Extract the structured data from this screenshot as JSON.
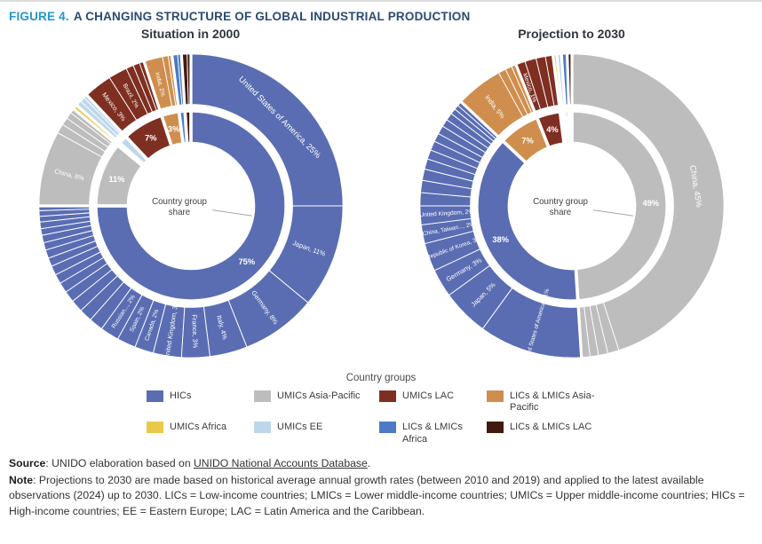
{
  "figure": {
    "label": "FIGURE 4.",
    "title": "A CHANGING STRUCTURE OF GLOBAL INDUSTRIAL PRODUCTION"
  },
  "colors": {
    "hics": "#5a6db3",
    "umics_ap": "#bdbdbd",
    "umics_lac": "#7e2f21",
    "lmics_ap": "#cf8e4e",
    "umics_africa": "#e9c949",
    "umics_ee": "#bdd7ea",
    "lmics_africa": "#4a7bc4",
    "lmics_lac": "#42190e"
  },
  "chart_data": [
    {
      "type": "donut",
      "title": "Situation in 2000",
      "center_label": "Country group share",
      "inner_ring": [
        {
          "group": "HICs",
          "color": "hics",
          "value": 75,
          "label": "75%"
        },
        {
          "group": "UMICs Asia-Pacific",
          "color": "umics_ap",
          "value": 11,
          "label": "11%"
        },
        {
          "group": "UMICs Africa",
          "color": "umics_africa",
          "value": 0.5
        },
        {
          "group": "UMICs EE",
          "color": "umics_ee",
          "value": 1.5
        },
        {
          "group": "UMICs LAC",
          "color": "umics_lac",
          "value": 7,
          "label": "7%"
        },
        {
          "group": "LICs & LMICs Asia-Pacific",
          "color": "lmics_ap",
          "value": 3,
          "label": "3%"
        },
        {
          "group": "LICs & LMICs Africa",
          "color": "lmics_africa",
          "value": 1
        },
        {
          "group": "LICs & LMICs LAC",
          "color": "lmics_lac",
          "value": 1
        }
      ],
      "outer_ring": [
        {
          "name": "United States of America",
          "label": "United States of America, 25%",
          "color": "hics",
          "value": 25
        },
        {
          "name": "Japan",
          "label": "Japan, 11%",
          "color": "hics",
          "value": 11
        },
        {
          "name": "Germany",
          "label": "Germany, 8%",
          "color": "hics",
          "value": 8
        },
        {
          "name": "Italy",
          "label": "Italy, 4%",
          "color": "hics",
          "value": 4
        },
        {
          "name": "France",
          "label": "France, 3%",
          "color": "hics",
          "value": 3
        },
        {
          "name": "United Kingdom",
          "label": "United Kingdom, 3%",
          "color": "hics",
          "value": 3
        },
        {
          "name": "Canada",
          "label": "Canada, 2%",
          "color": "hics",
          "value": 2
        },
        {
          "name": "Spain",
          "label": "Spain, 2%",
          "color": "hics",
          "value": 2
        },
        {
          "name": "Russian Federation",
          "label": "Russian..., 2%",
          "color": "hics",
          "value": 2
        },
        {
          "color": "hics",
          "value": 1.5
        },
        {
          "color": "hics",
          "value": 1.4
        },
        {
          "color": "hics",
          "value": 1.3
        },
        {
          "color": "hics",
          "value": 1.2
        },
        {
          "color": "hics",
          "value": 1.1
        },
        {
          "color": "hics",
          "value": 1
        },
        {
          "color": "hics",
          "value": 1
        },
        {
          "color": "hics",
          "value": 0.9
        },
        {
          "color": "hics",
          "value": 0.9
        },
        {
          "color": "hics",
          "value": 0.8
        },
        {
          "color": "hics",
          "value": 0.8
        },
        {
          "color": "hics",
          "value": 0.7
        },
        {
          "color": "hics",
          "value": 0.7
        },
        {
          "color": "hics",
          "value": 0.6
        },
        {
          "color": "hics",
          "value": 0.6
        },
        {
          "color": "hics",
          "value": 0.5
        },
        {
          "name": "China",
          "label": "China, 8%",
          "color": "umics_ap",
          "value": 8
        },
        {
          "color": "umics_ap",
          "value": 1
        },
        {
          "color": "umics_ap",
          "value": 0.8
        },
        {
          "color": "umics_ap",
          "value": 0.7
        },
        {
          "color": "umics_ap",
          "value": 0.5
        },
        {
          "color": "umics_africa",
          "value": 0.5
        },
        {
          "color": "umics_ee",
          "value": 0.6
        },
        {
          "color": "umics_ee",
          "value": 0.5
        },
        {
          "color": "umics_ee",
          "value": 0.4
        },
        {
          "name": "Mexico",
          "label": "Mexico, 3%",
          "color": "umics_lac",
          "value": 3
        },
        {
          "name": "Brazil",
          "label": "Brazil, 2%",
          "color": "umics_lac",
          "value": 2
        },
        {
          "color": "umics_lac",
          "value": 0.8
        },
        {
          "color": "umics_lac",
          "value": 0.7
        },
        {
          "color": "umics_lac",
          "value": 0.5
        },
        {
          "name": "India",
          "label": "India, 2%",
          "color": "lmics_ap",
          "value": 2
        },
        {
          "color": "lmics_ap",
          "value": 0.6
        },
        {
          "color": "lmics_ap",
          "value": 0.4
        },
        {
          "color": "lmics_africa",
          "value": 0.6
        },
        {
          "color": "lmics_africa",
          "value": 0.4
        },
        {
          "color": "lmics_lac",
          "value": 0.6
        },
        {
          "color": "lmics_lac",
          "value": 0.4
        }
      ]
    },
    {
      "type": "donut",
      "title": "Projection to 2030",
      "center_label": "Country group share",
      "inner_ring": [
        {
          "group": "UMICs Asia-Pacific",
          "color": "umics_ap",
          "value": 49,
          "label": "49%"
        },
        {
          "group": "HICs",
          "color": "hics",
          "value": 38,
          "label": "38%"
        },
        {
          "group": "LICs & LMICs Asia-Pacific",
          "color": "lmics_ap",
          "value": 7,
          "label": "7%"
        },
        {
          "group": "UMICs LAC",
          "color": "umics_lac",
          "value": 4,
          "label": "4%"
        },
        {
          "group": "UMICs Africa",
          "color": "umics_africa",
          "value": 0.4
        },
        {
          "group": "UMICs EE",
          "color": "umics_ee",
          "value": 0.5
        },
        {
          "group": "LICs & LMICs Africa",
          "color": "lmics_africa",
          "value": 0.6
        },
        {
          "group": "LICs & LMICs LAC",
          "color": "lmics_lac",
          "value": 0.5
        }
      ],
      "outer_ring": [
        {
          "name": "China",
          "label": "China, 45%",
          "color": "umics_ap",
          "value": 45
        },
        {
          "color": "umics_ap",
          "value": 1.2
        },
        {
          "color": "umics_ap",
          "value": 1
        },
        {
          "color": "umics_ap",
          "value": 0.9
        },
        {
          "color": "umics_ap",
          "value": 0.9
        },
        {
          "name": "United States of America",
          "label": "United States of America, 11%",
          "color": "hics",
          "value": 11
        },
        {
          "name": "Japan",
          "label": "Japan, 5%",
          "color": "hics",
          "value": 5
        },
        {
          "name": "Germany",
          "label": "Germany, 3%",
          "color": "hics",
          "value": 3
        },
        {
          "name": "Republic of Korea",
          "label": "Republic of Korea, 3%",
          "color": "hics",
          "value": 3
        },
        {
          "name": "China, Taiwan Province",
          "label": "China, Taiwan..., 2%",
          "color": "hics",
          "value": 2
        },
        {
          "name": "United Kingdom",
          "label": "United Kingdom, 2%",
          "color": "hics",
          "value": 2
        },
        {
          "color": "hics",
          "value": 1.4
        },
        {
          "color": "hics",
          "value": 1.3
        },
        {
          "color": "hics",
          "value": 1.2
        },
        {
          "color": "hics",
          "value": 1.1
        },
        {
          "color": "hics",
          "value": 1
        },
        {
          "color": "hics",
          "value": 1
        },
        {
          "color": "hics",
          "value": 0.9
        },
        {
          "color": "hics",
          "value": 0.9
        },
        {
          "color": "hics",
          "value": 0.8
        },
        {
          "color": "hics",
          "value": 0.8
        },
        {
          "color": "hics",
          "value": 0.6
        },
        {
          "color": "hics",
          "value": 0.5
        },
        {
          "color": "hics",
          "value": 0.5
        },
        {
          "name": "India",
          "label": "India, 5%",
          "color": "lmics_ap",
          "value": 5
        },
        {
          "color": "lmics_ap",
          "value": 0.8
        },
        {
          "color": "lmics_ap",
          "value": 0.7
        },
        {
          "color": "lmics_ap",
          "value": 0.5
        },
        {
          "name": "Mexico",
          "label": "Mexico, 1%",
          "color": "umics_lac",
          "value": 1
        },
        {
          "color": "umics_lac",
          "value": 1.2
        },
        {
          "color": "umics_lac",
          "value": 1
        },
        {
          "color": "umics_lac",
          "value": 0.8
        },
        {
          "color": "umics_africa",
          "value": 0.4
        },
        {
          "color": "umics_ee",
          "value": 0.5
        },
        {
          "color": "lmics_africa",
          "value": 0.6
        },
        {
          "color": "lmics_lac",
          "value": 0.5
        }
      ]
    }
  ],
  "legend": {
    "title": "Country groups",
    "items": [
      {
        "label": "HICs",
        "color": "hics"
      },
      {
        "label": "UMICs Asia-Pacific",
        "color": "umics_ap"
      },
      {
        "label": "UMICs LAC",
        "color": "umics_lac"
      },
      {
        "label": "LICs & LMICs Asia-Pacific",
        "color": "lmics_ap"
      },
      {
        "label": "UMICs Africa",
        "color": "umics_africa"
      },
      {
        "label": "UMICs EE",
        "color": "umics_ee"
      },
      {
        "label": "LICs & LMICs Africa",
        "color": "lmics_africa"
      },
      {
        "label": "LICs & LMICs LAC",
        "color": "lmics_lac"
      }
    ]
  },
  "source": {
    "bold": "Source",
    "text": ": UNIDO elaboration based on ",
    "link": "UNIDO National Accounts Database",
    "suffix": "."
  },
  "note": {
    "bold": "Note",
    "text": ": Projections to 2030 are made based on historical average annual growth rates (between 2010 and 2019) and applied to the latest available observations (2024) up to 2030. LICs = Low-income countries; LMICs = Lower middle-income countries; UMICs = Upper middle-income countries; HICs = High-income countries; EE = Eastern Europe; LAC = Latin America and the Caribbean."
  }
}
